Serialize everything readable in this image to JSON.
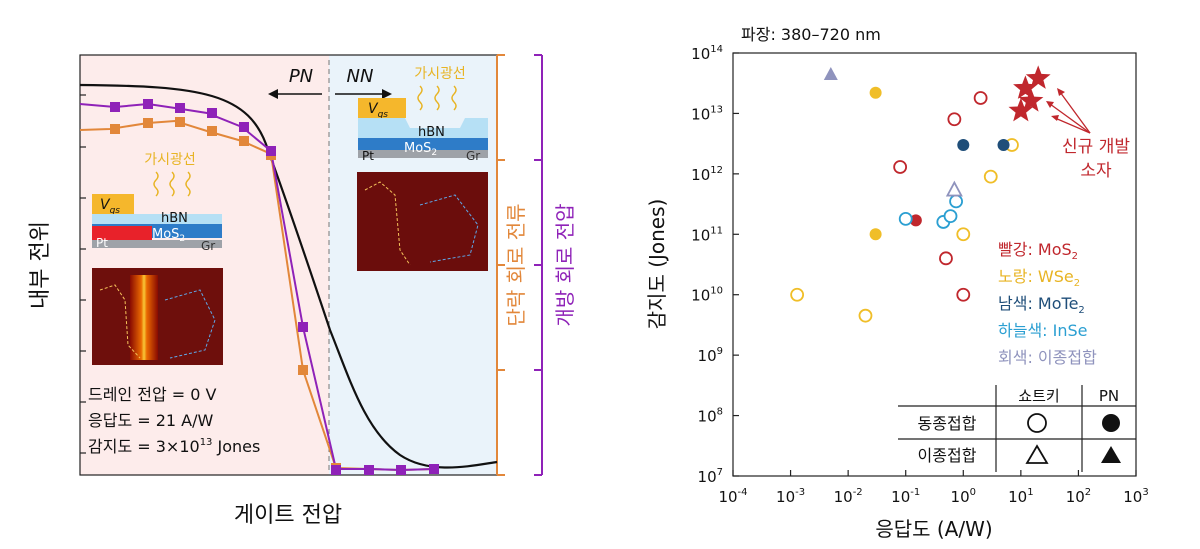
{
  "left_panel": {
    "ylabel": "내부 전위",
    "xlabel": "게이트 전압",
    "right_labels": {
      "orange": "단락 회로 전류",
      "purple": "개방 회로 전압"
    },
    "region_pn": "PN",
    "region_nn": "NN",
    "visible_light": "가시광선",
    "vgs_label": "V",
    "vgs_sub": "gs",
    "hbn_label": "hBN",
    "mos2_label": "MoS",
    "mos2_sub": "2",
    "pt_label": "Pt",
    "gr_label": "Gr",
    "info_lines": [
      "드레인 전압 = 0 V",
      "응답도 = 21 A/W"
    ],
    "info_det_prefix": "감지도 = 3×10",
    "info_det_exp": "13",
    "info_det_suffix": " Jones",
    "colors": {
      "orange": "#e2873a",
      "purple": "#8f22b8",
      "pn_bg": "#fdeceb",
      "nn_bg": "#eaf3fa"
    }
  },
  "chart_data": {
    "type": "scatter",
    "xscale": "log",
    "yscale": "log",
    "xlim": [
      0.0001,
      1000
    ],
    "ylim": [
      10000000,
      100000000000000
    ],
    "xlabel": "응답도 (A/W)",
    "ylabel": "감지도 (Jones)",
    "subtitle": "파장: 380–720 nm",
    "xticks": [
      {
        "b": "10",
        "e": "-4",
        "v": 0.0001
      },
      {
        "b": "10",
        "e": "-3",
        "v": 0.001
      },
      {
        "b": "10",
        "e": "-2",
        "v": 0.01
      },
      {
        "b": "10",
        "e": "-1",
        "v": 0.1
      },
      {
        "b": "10",
        "e": "0",
        "v": 1
      },
      {
        "b": "10",
        "e": "1",
        "v": 10
      },
      {
        "b": "10",
        "e": "2",
        "v": 100
      },
      {
        "b": "10",
        "e": "3",
        "v": 1000
      }
    ],
    "yticks": [
      {
        "b": "10",
        "e": "7",
        "v": 10000000
      },
      {
        "b": "10",
        "e": "8",
        "v": 100000000
      },
      {
        "b": "10",
        "e": "9",
        "v": 1000000000
      },
      {
        "b": "10",
        "e": "10",
        "v": 10000000000
      },
      {
        "b": "10",
        "e": "11",
        "v": 100000000000
      },
      {
        "b": "10",
        "e": "12",
        "v": 1000000000000
      },
      {
        "b": "10",
        "e": "13",
        "v": 10000000000000
      },
      {
        "b": "10",
        "e": "14",
        "v": 100000000000000
      }
    ],
    "series": [
      {
        "name": "MoS2",
        "color": "#c0272d",
        "points": [
          {
            "x": 0.08,
            "y": 1300000000000.0,
            "shape": "circle",
            "filled": false
          },
          {
            "x": 0.7,
            "y": 8000000000000.0,
            "shape": "circle",
            "filled": false
          },
          {
            "x": 2.0,
            "y": 18000000000000.0,
            "shape": "circle",
            "filled": false
          },
          {
            "x": 0.5,
            "y": 40000000000.0,
            "shape": "circle",
            "filled": false
          },
          {
            "x": 1.0,
            "y": 10000000000.0,
            "shape": "circle",
            "filled": false
          },
          {
            "x": 0.15,
            "y": 170000000000.0,
            "shape": "circle",
            "filled": true
          }
        ]
      },
      {
        "name": "WSe2",
        "color": "#f0be28",
        "points": [
          {
            "x": 0.0013,
            "y": 10000000000.0,
            "shape": "circle",
            "filled": false
          },
          {
            "x": 0.02,
            "y": 4500000000.0,
            "shape": "circle",
            "filled": false
          },
          {
            "x": 0.03,
            "y": 22000000000000.0,
            "shape": "circle",
            "filled": true
          },
          {
            "x": 0.03,
            "y": 100000000000.0,
            "shape": "circle",
            "filled": true
          },
          {
            "x": 1.0,
            "y": 100000000000.0,
            "shape": "circle",
            "filled": false
          },
          {
            "x": 3.0,
            "y": 900000000000.0,
            "shape": "circle",
            "filled": false
          },
          {
            "x": 7.0,
            "y": 3000000000000.0,
            "shape": "circle",
            "filled": false
          }
        ]
      },
      {
        "name": "MoTe2",
        "color": "#1f4e79",
        "points": [
          {
            "x": 1.0,
            "y": 3000000000000.0,
            "shape": "circle",
            "filled": true
          },
          {
            "x": 5.0,
            "y": 3000000000000.0,
            "shape": "circle",
            "filled": true
          }
        ]
      },
      {
        "name": "InSe",
        "color": "#2b9fd2",
        "points": [
          {
            "x": 0.1,
            "y": 180000000000.0,
            "shape": "circle",
            "filled": false
          },
          {
            "x": 0.45,
            "y": 160000000000.0,
            "shape": "circle",
            "filled": false
          },
          {
            "x": 0.6,
            "y": 200000000000.0,
            "shape": "circle",
            "filled": false
          },
          {
            "x": 0.75,
            "y": 350000000000.0,
            "shape": "circle",
            "filled": false
          }
        ]
      },
      {
        "name": "이종접합",
        "color": "#8f93bd",
        "points": [
          {
            "x": 0.005,
            "y": 45000000000000.0,
            "shape": "triangle",
            "filled": true
          },
          {
            "x": 0.7,
            "y": 550000000000.0,
            "shape": "triangle",
            "filled": false
          }
        ]
      },
      {
        "name": "신규 개발 소자",
        "color": "#c0272d",
        "points": [
          {
            "x": 20,
            "y": 38000000000000.0,
            "shape": "star",
            "filled": true
          },
          {
            "x": 12,
            "y": 26000000000000.0,
            "shape": "star",
            "filled": true
          },
          {
            "x": 15,
            "y": 16000000000000.0,
            "shape": "star",
            "filled": true
          },
          {
            "x": 10,
            "y": 11000000000000.0,
            "shape": "star",
            "filled": true
          }
        ]
      }
    ],
    "annotation": {
      "line1": "신규 개발",
      "line2": "소자",
      "color": "#c0272d"
    },
    "legend_colors": [
      {
        "label": "빨강: MoS",
        "sub": "2",
        "color": "#c0272d"
      },
      {
        "label": "노랑: WSe",
        "sub": "2",
        "color": "#e8b424"
      },
      {
        "label": "남색: MoTe",
        "sub": "2",
        "color": "#1f4e79"
      },
      {
        "label": "하늘색: InSe",
        "sub": "",
        "color": "#2b9fd2"
      },
      {
        "label": "회색: 이종접합",
        "sub": "",
        "color": "#8f93bd"
      }
    ],
    "legend_table": {
      "col1": "쇼트키",
      "col2": "PN",
      "row1": "동종접합",
      "row2": "이종접합"
    }
  }
}
